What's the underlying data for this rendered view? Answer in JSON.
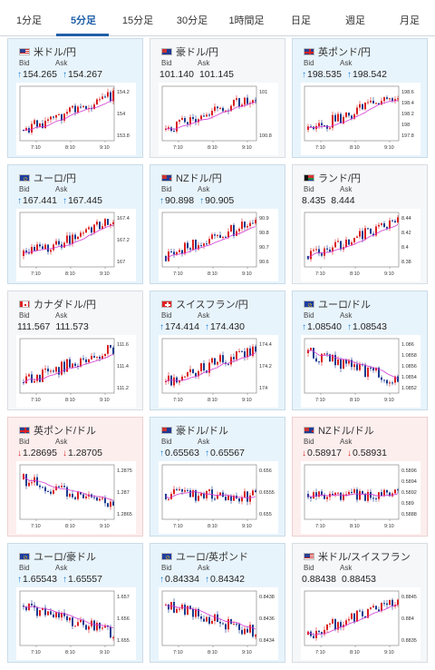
{
  "tabs": [
    "1分足",
    "5分足",
    "15分足",
    "30分足",
    "1時間足",
    "日足",
    "週足",
    "月足"
  ],
  "active_tab": "5分足",
  "labels": {
    "bid": "Bid",
    "ask": "Ask"
  },
  "colors": {
    "up": "#d92020",
    "down": "#1b3d8f",
    "ma": "#d23ad2",
    "arrow_up": "#1b7fd3",
    "arrow_down": "#d9302c"
  },
  "cards": [
    {
      "pair": "米ドル/円",
      "flag": "us",
      "bid": "154.265",
      "ask": "154.267",
      "dir": "up",
      "ticks": [
        "154.2",
        "154",
        "153.8"
      ],
      "xticks": [
        "7:10",
        "8:10",
        "9:10"
      ],
      "trend": "up"
    },
    {
      "pair": "豪ドル/円",
      "flag": "au",
      "bid": "101.140",
      "ask": "101.145",
      "dir": "none",
      "ticks": [
        "101",
        "100.8"
      ],
      "xticks": [
        "7:10",
        "8:10",
        "9:10"
      ],
      "trend": "up"
    },
    {
      "pair": "英ポンド/円",
      "flag": "uk",
      "bid": "198.535",
      "ask": "198.542",
      "dir": "up",
      "ticks": [
        "198.6",
        "198.4",
        "198.2",
        "198",
        "197.8"
      ],
      "xticks": [
        "7:10",
        "8:10",
        "9:10"
      ],
      "trend": "up"
    },
    {
      "pair": "ユーロ/円",
      "flag": "eu",
      "bid": "167.441",
      "ask": "167.445",
      "dir": "up",
      "ticks": [
        "167.4",
        "167.2",
        "167"
      ],
      "xticks": [
        "7:10",
        "8:10",
        "9:10"
      ],
      "trend": "up"
    },
    {
      "pair": "NZドル/円",
      "flag": "nz",
      "bid": "90.898",
      "ask": "90.905",
      "dir": "up",
      "ticks": [
        "90.9",
        "90.8",
        "90.7",
        "90.6"
      ],
      "xticks": [
        "7:10",
        "8:10",
        "9:10"
      ],
      "trend": "up"
    },
    {
      "pair": "ランド/円",
      "flag": "za",
      "bid": "8.435",
      "ask": "8.444",
      "dir": "none",
      "ticks": [
        "8.44",
        "8.42",
        "8.4",
        "8.38"
      ],
      "xticks": [
        "7:10",
        "8:10",
        "9:10"
      ],
      "trend": "up"
    },
    {
      "pair": "カナダドル/円",
      "flag": "ca",
      "bid": "111.567",
      "ask": "111.573",
      "dir": "none",
      "ticks": [
        "111.6",
        "111.4",
        "111.2"
      ],
      "xticks": [
        "7:10",
        "8:10",
        "9:10"
      ],
      "trend": "up"
    },
    {
      "pair": "スイスフラン/円",
      "flag": "ch",
      "bid": "174.414",
      "ask": "174.430",
      "dir": "up",
      "ticks": [
        "174.4",
        "174.2",
        "174"
      ],
      "xticks": [
        "7:10",
        "8:10",
        "9:10"
      ],
      "trend": "up"
    },
    {
      "pair": "ユーロ/ドル",
      "flag": "eu",
      "bid": "1.08540",
      "ask": "1.08543",
      "dir": "up",
      "ticks": [
        "1.086",
        "1.0858",
        "1.0856",
        "1.0854",
        "1.0852"
      ],
      "xticks": [
        "7:10",
        "8:10",
        "9:10"
      ],
      "trend": "down"
    },
    {
      "pair": "英ポンド/ドル",
      "flag": "uk",
      "bid": "1.28695",
      "ask": "1.28705",
      "dir": "down",
      "ticks": [
        "1.2875",
        "1.287",
        "1.2865"
      ],
      "xticks": [
        "7:10",
        "8:10",
        "9:10"
      ],
      "trend": "down"
    },
    {
      "pair": "豪ドル/ドル",
      "flag": "au",
      "bid": "0.65563",
      "ask": "0.65567",
      "dir": "up",
      "ticks": [
        "0.656",
        "0.6555",
        "0.655"
      ],
      "xticks": [
        "7:10",
        "8:10",
        "9:10"
      ],
      "trend": "flat"
    },
    {
      "pair": "NZドル/ドル",
      "flag": "nz",
      "bid": "0.58917",
      "ask": "0.58931",
      "dir": "down",
      "ticks": [
        "0.5896",
        "0.5894",
        "0.5892",
        "0.589",
        "0.5888"
      ],
      "xticks": [
        "7:10",
        "8:10",
        "9:10"
      ],
      "trend": "flat"
    },
    {
      "pair": "ユーロ/豪ドル",
      "flag": "eu",
      "bid": "1.65543",
      "ask": "1.65557",
      "dir": "up",
      "ticks": [
        "1.657",
        "1.656",
        "1.655"
      ],
      "xticks": [
        "7:10",
        "8:10",
        "9:10"
      ],
      "trend": "down"
    },
    {
      "pair": "ユーロ/英ポンド",
      "flag": "eu",
      "bid": "0.84334",
      "ask": "0.84342",
      "dir": "up",
      "ticks": [
        "0.8438",
        "0.8436",
        "0.8434"
      ],
      "xticks": [
        "7:10",
        "8:10",
        "9:10"
      ],
      "trend": "down"
    },
    {
      "pair": "米ドル/スイスフラン",
      "flag": "us",
      "bid": "0.88438",
      "ask": "0.88453",
      "dir": "none",
      "ticks": [
        "0.8845",
        "0.884",
        "0.8835"
      ],
      "xticks": [
        "7:10",
        "8:10",
        "9:10"
      ],
      "trend": "up"
    }
  ]
}
